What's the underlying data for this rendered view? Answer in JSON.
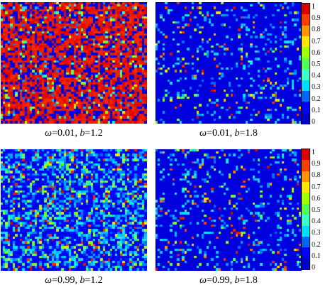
{
  "chart_data": [
    {
      "type": "heatmap",
      "panel": "top-left",
      "caption": {
        "omega": "0.01",
        "b": "1.2"
      },
      "grid": [
        60,
        50
      ],
      "dominant_value": 0.95,
      "colorscale": "jet",
      "zlim": [
        0,
        1
      ]
    },
    {
      "type": "heatmap",
      "panel": "top-right",
      "caption": {
        "omega": "0.01",
        "b": "1.8"
      },
      "grid": [
        60,
        50
      ],
      "dominant_value": 0.05,
      "colorscale": "jet",
      "zlim": [
        0,
        1
      ]
    },
    {
      "type": "heatmap",
      "panel": "bottom-left",
      "caption": {
        "omega": "0.99",
        "b": "1.2"
      },
      "grid": [
        60,
        50
      ],
      "dominant_value": 0.2,
      "colorscale": "jet",
      "zlim": [
        0,
        1
      ]
    },
    {
      "type": "heatmap",
      "panel": "bottom-right",
      "caption": {
        "omega": "0.99",
        "b": "1.8"
      },
      "grid": [
        60,
        50
      ],
      "dominant_value": 0.05,
      "colorscale": "jet",
      "zlim": [
        0,
        1
      ]
    }
  ],
  "colorbar": {
    "ticks": [
      "1",
      "0.9",
      "0.8",
      "0.7",
      "0.6",
      "0.5",
      "0.4",
      "0.3",
      "0.2",
      "0.1",
      "0"
    ],
    "range": [
      0,
      1
    ]
  },
  "labels": {
    "omega_symbol": "ω",
    "equals": "=",
    "sep": ", ",
    "b_symbol": "b"
  }
}
